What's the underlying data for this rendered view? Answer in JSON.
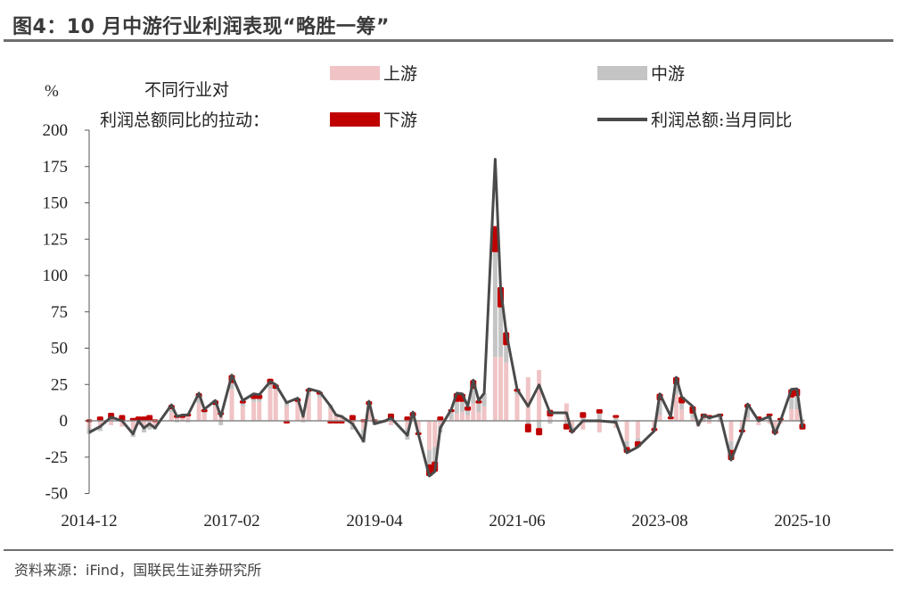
{
  "title": "图4：10 月中游行业利润表现“略胜一筹”",
  "source": "资料来源：iFind，国联民生证券研究所",
  "legend": {
    "heading_line1": "不同行业对",
    "heading_line2": "利润总额同比的拉动：",
    "upstream": "上游",
    "midstream": "中游",
    "downstream": "下游",
    "total": "利润总额:当月同比"
  },
  "colors": {
    "upstream": "#f0c4c6",
    "midstream": "#c4c4c4",
    "downstream": "#c00000",
    "total": "#4a4a4a"
  },
  "chart_data": {
    "type": "bar",
    "stacked": true,
    "ylabel": "%",
    "ylim": [
      -50,
      200
    ],
    "yticks": [
      "200",
      "175",
      "150",
      "125",
      "100",
      "75",
      "50",
      "25",
      "0",
      "-25",
      "-50"
    ],
    "xlim": [
      "2014-12",
      "2025-10"
    ],
    "xticks": [
      "2014-12",
      "2017-02",
      "2019-04",
      "2021-06",
      "2023-08",
      "2025-10"
    ],
    "grid": false,
    "legend_position": "top",
    "points": [
      [
        "2014-12",
        -8,
        -5,
        -4,
        1
      ],
      [
        "2015-02",
        -4,
        -4,
        -3,
        3
      ],
      [
        "2015-04",
        2.5,
        -3,
        1,
        4.5
      ],
      [
        "2015-06",
        0,
        -4,
        0,
        4
      ],
      [
        "2015-08",
        -9,
        -6,
        -5,
        2
      ],
      [
        "2015-09",
        0,
        -3,
        0,
        3
      ],
      [
        "2015-10",
        -5,
        -5,
        -3,
        3
      ],
      [
        "2015-11",
        -2,
        -4,
        -2,
        4
      ],
      [
        "2015-12",
        -5,
        -5,
        -1,
        1
      ],
      [
        "2016-03",
        11,
        6,
        2,
        3
      ],
      [
        "2016-04",
        3,
        2,
        -1,
        2
      ],
      [
        "2016-05",
        4,
        2,
        0,
        2
      ],
      [
        "2016-06",
        4,
        3,
        -1,
        2
      ],
      [
        "2016-08",
        19,
        12,
        4,
        3
      ],
      [
        "2016-09",
        8,
        5,
        1,
        2
      ],
      [
        "2016-11",
        14,
        10,
        1,
        3
      ],
      [
        "2016-12",
        3,
        4,
        -3,
        2
      ],
      [
        "2017-02",
        31.5,
        22,
        4,
        5.5
      ],
      [
        "2017-04",
        14,
        10,
        2,
        2
      ],
      [
        "2017-06",
        18.6,
        13,
        2,
        3.6
      ],
      [
        "2017-07",
        18,
        13,
        2,
        3
      ],
      [
        "2017-09",
        27,
        22,
        3,
        4
      ],
      [
        "2017-10",
        25,
        21,
        1,
        3
      ],
      [
        "2017-12",
        12.5,
        10,
        3,
        -0.5
      ],
      [
        "2018-02",
        15.6,
        13,
        0,
        2.6
      ],
      [
        "2018-03",
        3,
        4,
        -1,
        0
      ],
      [
        "2018-04",
        22,
        17,
        3,
        2
      ],
      [
        "2018-06",
        20,
        16,
        2,
        2
      ],
      [
        "2018-08",
        10,
        8,
        3,
        -1
      ],
      [
        "2018-09",
        4,
        4,
        1,
        -1
      ],
      [
        "2018-10",
        3,
        3,
        1,
        -1
      ],
      [
        "2018-12",
        -2,
        -2,
        -4,
        4
      ],
      [
        "2019-02",
        -14,
        -6,
        -9,
        1
      ],
      [
        "2019-03",
        13.5,
        10,
        1,
        2.5
      ],
      [
        "2019-04",
        -2,
        -1,
        -2,
        1
      ],
      [
        "2019-06",
        0,
        -1,
        1,
        0
      ],
      [
        "2019-07",
        2,
        -3,
        1,
        4
      ],
      [
        "2019-10",
        -10,
        -5,
        -8,
        3
      ],
      [
        "2019-11",
        6,
        2,
        1,
        3
      ],
      [
        "2019-12",
        -9,
        -6,
        -2,
        -1
      ],
      [
        "2020-02",
        -38,
        -20,
        -10,
        -8
      ],
      [
        "2020-03",
        -35,
        -18,
        -10,
        -7
      ],
      [
        "2020-04",
        -5,
        -3,
        -5,
        3
      ],
      [
        "2020-06",
        8,
        1,
        5,
        2
      ],
      [
        "2020-07",
        19,
        5,
        8,
        6
      ],
      [
        "2020-08",
        18.6,
        6,
        7,
        5.6
      ],
      [
        "2020-09",
        10,
        4,
        3,
        3
      ],
      [
        "2020-10",
        28,
        12,
        10,
        6
      ],
      [
        "2020-11",
        14,
        6,
        6,
        2
      ],
      [
        "2020-12",
        19,
        10,
        9,
        0
      ],
      [
        "2021-02",
        180,
        44,
        72,
        18
      ],
      [
        "2021-03",
        91,
        44,
        34,
        14
      ],
      [
        "2021-04",
        61,
        40,
        12,
        9
      ],
      [
        "2021-06",
        21.7,
        18,
        2,
        2
      ],
      [
        "2021-08",
        10,
        30,
        -2,
        -6
      ],
      [
        "2021-10",
        24.7,
        35,
        -5,
        -5
      ],
      [
        "2021-12",
        5.5,
        3,
        -2,
        4.5
      ],
      [
        "2022-03",
        5.5,
        12,
        -2,
        -4
      ],
      [
        "2022-04",
        -8,
        -4,
        -2,
        -2
      ],
      [
        "2022-06",
        0,
        -6,
        2,
        4
      ],
      [
        "2022-09",
        0,
        -8,
        5,
        3
      ],
      [
        "2022-12",
        -1,
        -5,
        2,
        2
      ],
      [
        "2023-02",
        -22,
        -14,
        -4,
        -4
      ],
      [
        "2023-04",
        -18,
        -12,
        -2,
        -4
      ],
      [
        "2023-07",
        -7,
        -4,
        -1,
        -2
      ],
      [
        "2023-08",
        18.6,
        4,
        10,
        4.6
      ],
      [
        "2023-10",
        3,
        2,
        0,
        1
      ],
      [
        "2023-11",
        30,
        18,
        7,
        5
      ],
      [
        "2023-12",
        16.5,
        8,
        4,
        4.5
      ],
      [
        "2024-02",
        10,
        2,
        3,
        5
      ],
      [
        "2024-03",
        -3,
        -4,
        1,
        0
      ],
      [
        "2024-04",
        4,
        -1,
        2,
        3
      ],
      [
        "2024-05",
        2,
        -2,
        2,
        2
      ],
      [
        "2024-07",
        4,
        -1,
        3,
        2
      ],
      [
        "2024-09",
        -27,
        -14,
        -6,
        -7
      ],
      [
        "2024-11",
        -8,
        -4,
        -2,
        -2
      ],
      [
        "2024-12",
        11.6,
        2,
        7,
        2.6
      ],
      [
        "2025-02",
        0,
        -3,
        2,
        1
      ],
      [
        "2025-04",
        3,
        -2,
        4,
        1
      ],
      [
        "2025-05",
        -9,
        -4,
        -2,
        -3
      ],
      [
        "2025-06",
        0,
        -2,
        1,
        1
      ],
      [
        "2025-08",
        21.7,
        8,
        8,
        5.7
      ],
      [
        "2025-09",
        22,
        8,
        9,
        5
      ],
      [
        "2025-10",
        -5,
        -2,
        1,
        -4
      ]
    ],
    "point_fields": [
      "date",
      "total",
      "upstream",
      "midstream",
      "downstream"
    ]
  }
}
